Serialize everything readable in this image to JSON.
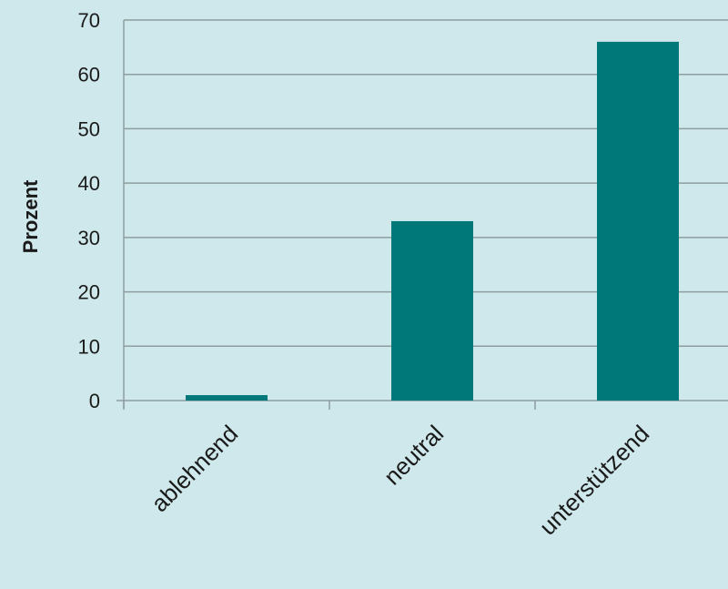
{
  "chart_data": {
    "type": "bar",
    "categories": [
      "ablehnend",
      "neutral",
      "unterstützend"
    ],
    "values": [
      1,
      33,
      66
    ],
    "ylabel": "Prozent",
    "xlabel": "",
    "ylim": [
      0,
      70
    ],
    "yticks": [
      0,
      10,
      20,
      30,
      40,
      50,
      60,
      70
    ],
    "grid": true,
    "legend": "none"
  },
  "colors": {
    "background": "#cfe8eb",
    "bar": "#00787a",
    "grid": "#8e9ea0",
    "text": "#1a1a1a"
  }
}
